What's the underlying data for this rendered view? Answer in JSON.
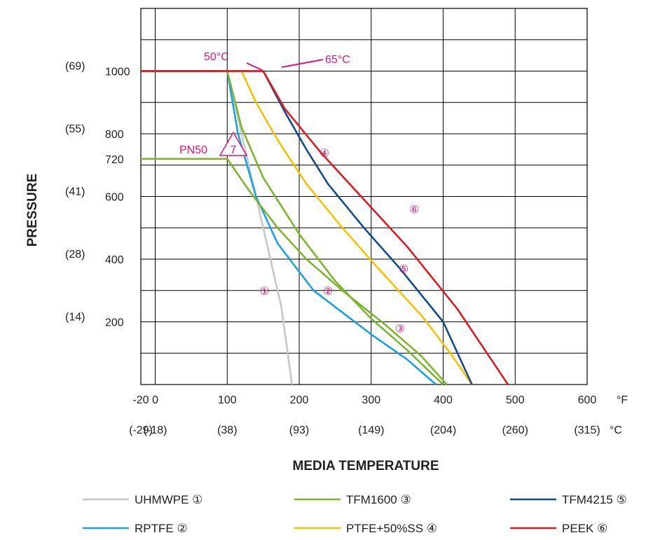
{
  "chart_data": {
    "type": "line",
    "ylabel": "PRESSURE",
    "xlabel": "MEDIA TEMPERATURE",
    "x_unit": "°F",
    "x2_unit": "°C",
    "xlim": [
      -20,
      600
    ],
    "ylim": [
      0,
      1200
    ],
    "grid": true,
    "x_ticks": [
      {
        "value": -20,
        "label": "-20",
        "celsius": "(-29)"
      },
      {
        "value": 0,
        "label": "0",
        "celsius": "(-18)"
      },
      {
        "value": 100,
        "label": "100",
        "celsius": "(38)"
      },
      {
        "value": 200,
        "label": "200",
        "celsius": "(93)"
      },
      {
        "value": 300,
        "label": "300",
        "celsius": "(149)"
      },
      {
        "value": 400,
        "label": "400",
        "celsius": "(204)"
      },
      {
        "value": 500,
        "label": "500",
        "celsius": "(260)"
      },
      {
        "value": 600,
        "label": "600",
        "celsius": "(315)"
      }
    ],
    "y_ticks": [
      {
        "value": 200,
        "label": "200",
        "bar": "(14)"
      },
      {
        "value": 400,
        "label": "400",
        "bar": "(28)"
      },
      {
        "value": 600,
        "label": "600",
        "bar": "(41)"
      },
      {
        "value": 720,
        "label": "720",
        "bar": ""
      },
      {
        "value": 800,
        "label": "800",
        "bar": "(55)"
      },
      {
        "value": 1000,
        "label": "1000",
        "bar": "(69)"
      }
    ],
    "annotations": {
      "t50": "50°C",
      "t65": "65°C",
      "pn50": "PN50",
      "pn50_mark": "7"
    },
    "series": [
      {
        "name": "UHMWPE",
        "marker": "①",
        "color": "#c8c8c8",
        "points": [
          [
            -20,
            1000
          ],
          [
            100,
            1000
          ],
          [
            150,
            500
          ],
          [
            175,
            250
          ],
          [
            190,
            0
          ]
        ]
      },
      {
        "name": "RPTFE",
        "marker": "②",
        "color": "#1aa3e0",
        "points": [
          [
            -20,
            1000
          ],
          [
            100,
            1000
          ],
          [
            115,
            800
          ],
          [
            140,
            600
          ],
          [
            170,
            450
          ],
          [
            220,
            300
          ],
          [
            300,
            160
          ],
          [
            350,
            80
          ],
          [
            390,
            0
          ]
        ]
      },
      {
        "name": "TFM1600",
        "marker": "③",
        "color": "#7db52f",
        "points": [
          [
            -20,
            1000
          ],
          [
            100,
            1000
          ],
          [
            120,
            820
          ],
          [
            150,
            660
          ],
          [
            200,
            480
          ],
          [
            250,
            330
          ],
          [
            300,
            210
          ],
          [
            350,
            110
          ],
          [
            400,
            0
          ]
        ]
      },
      {
        "name": "TFM1600 PN50",
        "marker": "",
        "color": "#7db52f",
        "points": [
          [
            -20,
            720
          ],
          [
            100,
            720
          ],
          [
            130,
            620
          ],
          [
            170,
            500
          ],
          [
            210,
            400
          ],
          [
            260,
            300
          ],
          [
            320,
            190
          ],
          [
            370,
            90
          ],
          [
            405,
            0
          ]
        ]
      },
      {
        "name": "PTFE+50%SS",
        "marker": "④",
        "color": "#f5c200",
        "points": [
          [
            -20,
            1000
          ],
          [
            120,
            1000
          ],
          [
            140,
            900
          ],
          [
            170,
            780
          ],
          [
            210,
            640
          ],
          [
            260,
            500
          ],
          [
            310,
            370
          ],
          [
            370,
            220
          ],
          [
            410,
            100
          ],
          [
            440,
            0
          ]
        ]
      },
      {
        "name": "TFM4215",
        "marker": "⑤",
        "color": "#134a8e",
        "points": [
          [
            -20,
            1000
          ],
          [
            150,
            1000
          ],
          [
            180,
            870
          ],
          [
            210,
            750
          ],
          [
            240,
            640
          ],
          [
            290,
            500
          ],
          [
            340,
            370
          ],
          [
            400,
            200
          ],
          [
            440,
            0
          ]
        ]
      },
      {
        "name": "PEEK",
        "marker": "⑥",
        "color": "#dc1c24",
        "points": [
          [
            -20,
            1000
          ],
          [
            150,
            1000
          ],
          [
            180,
            880
          ],
          [
            230,
            740
          ],
          [
            290,
            590
          ],
          [
            350,
            440
          ],
          [
            420,
            240
          ],
          [
            490,
            0
          ]
        ]
      }
    ],
    "legend_placement": "bottom",
    "legend": [
      {
        "label": "UHMWPE ①",
        "color": "#c8c8c8"
      },
      {
        "label": "TFM1600 ③",
        "color": "#7db52f"
      },
      {
        "label": "TFM4215 ⑤",
        "color": "#134a8e"
      },
      {
        "label": "RPTFE ②",
        "color": "#1aa3e0"
      },
      {
        "label": "PTFE+50%SS ④",
        "color": "#f5c200"
      },
      {
        "label": "PEEK ⑥",
        "color": "#dc1c24"
      }
    ]
  }
}
